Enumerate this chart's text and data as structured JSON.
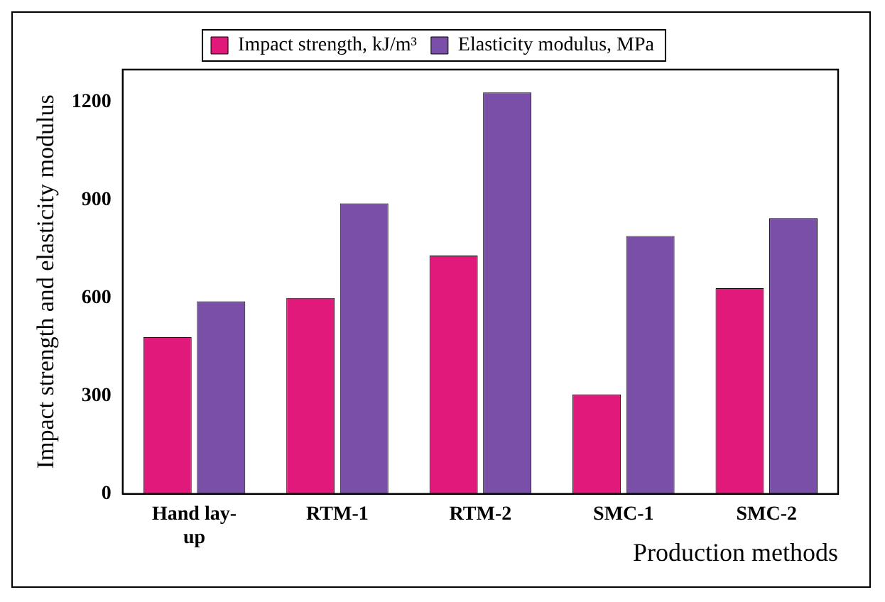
{
  "chart_data": {
    "type": "bar",
    "xlabel": "Production methods",
    "ylabel": "Impact strength and elasticity modulus",
    "categories": [
      "Hand lay-up",
      "RTM-1",
      "RTM-2",
      "SMC-1",
      "SMC-2"
    ],
    "series": [
      {
        "name": "Impact strength, kJ/m³",
        "color": "#e0197a",
        "values": [
          480,
          600,
          730,
          305,
          630
        ]
      },
      {
        "name": "Elasticity modulus, MPa",
        "color": "#7a4fa8",
        "values": [
          590,
          890,
          1230,
          790,
          845
        ]
      }
    ],
    "ylim": [
      0,
      1300
    ],
    "yticks": [
      0,
      300,
      600,
      900,
      1200
    ],
    "grid": false,
    "legend": "top"
  }
}
